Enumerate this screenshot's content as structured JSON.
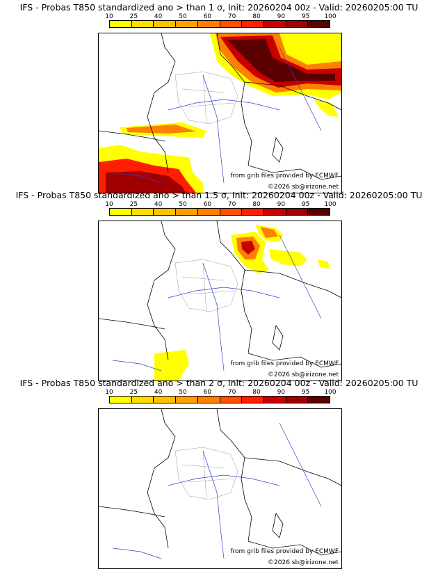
{
  "panels": [
    {
      "title": "IFS - Probas T850  standardized ano > than 1 σ, Init: 20260204 00z - Valid: 20260205:00 TU",
      "highlight_level": "high"
    },
    {
      "title": "IFS - Probas T850  standardized ano > than 1.5 σ, Init: 20260204 00z - Valid: 20260205:00 TU",
      "highlight_level": "medium"
    },
    {
      "title": "IFS - Probas T850  standardized ano > than 2 σ, Init: 20260204 00z - Valid: 20260205:00 TU",
      "highlight_level": "none"
    }
  ],
  "legend": {
    "ticks": [
      "10",
      "25",
      "40",
      "50",
      "60",
      "70",
      "80",
      "90",
      "95",
      "100"
    ],
    "colors": [
      "#ffff00",
      "#ffdc00",
      "#ffc000",
      "#ffa000",
      "#ff8000",
      "#ff5000",
      "#ff1e00",
      "#c80000",
      "#a00000",
      "#5a0000"
    ]
  },
  "credits": {
    "source": "from grib files provided by ECMWF",
    "copyright": "©2026 sb@irizone.net"
  }
}
